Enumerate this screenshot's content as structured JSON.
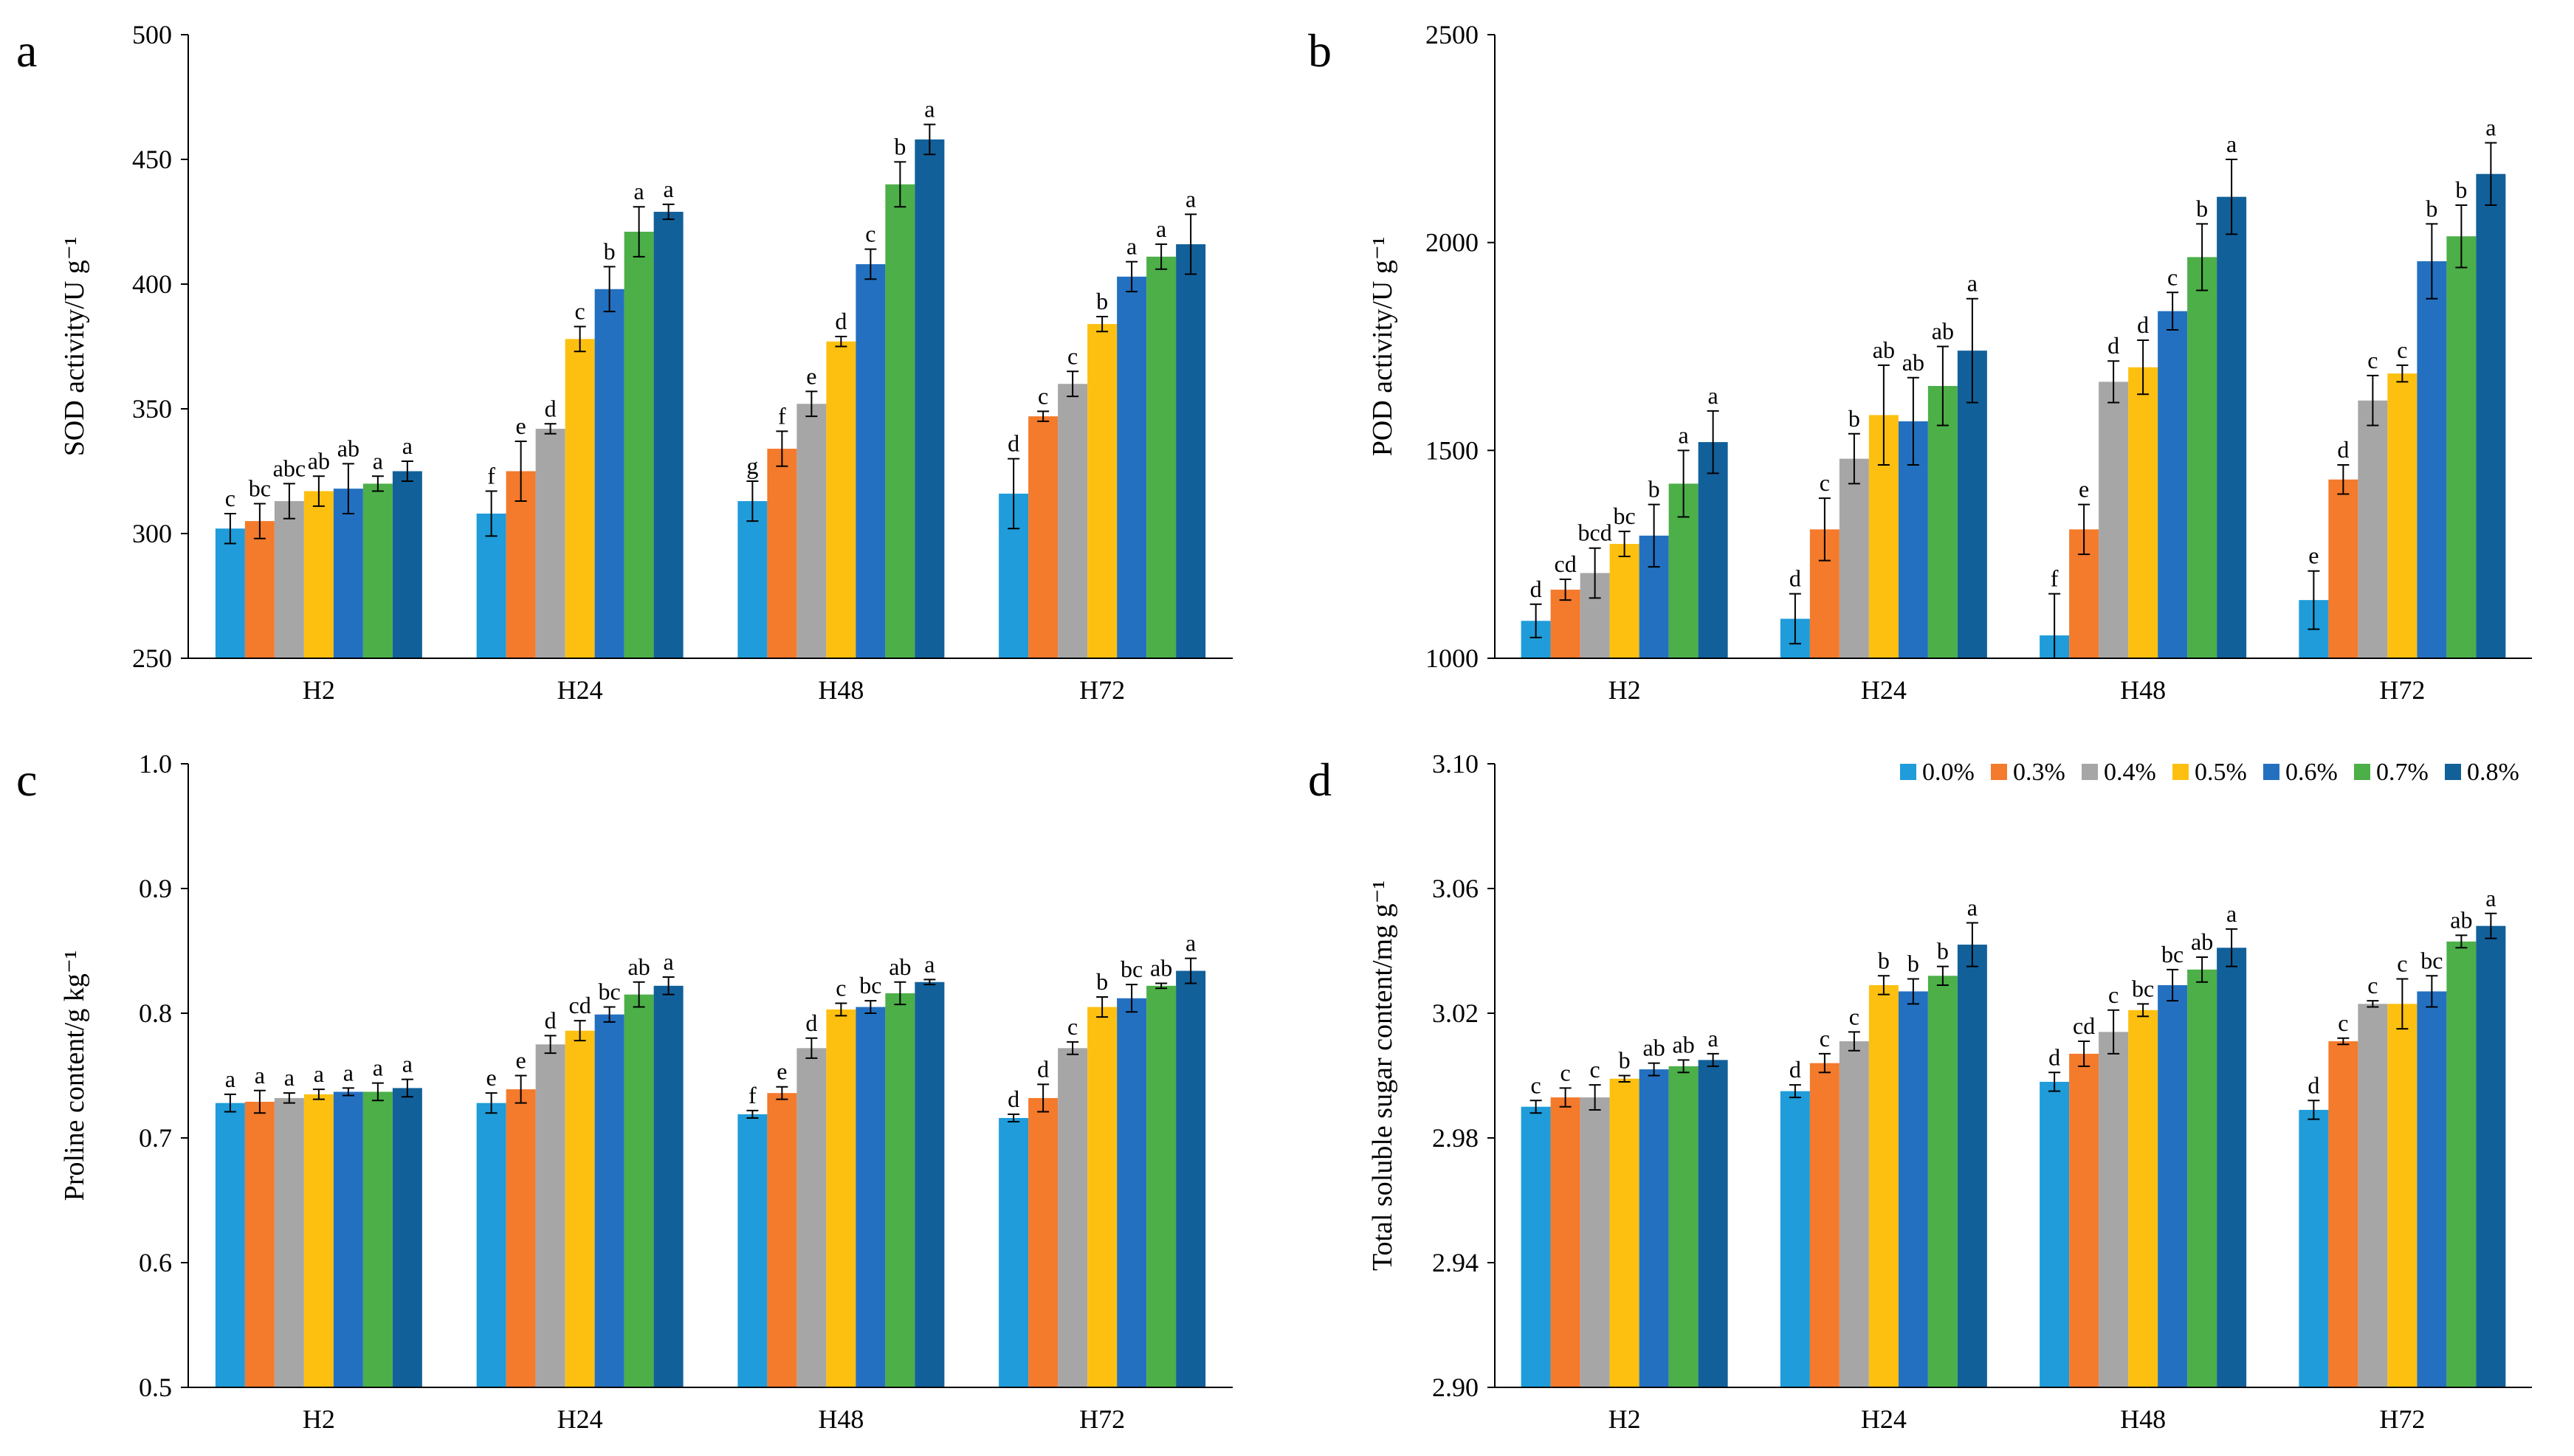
{
  "legend": {
    "labels": [
      "0.0%",
      "0.3%",
      "0.4%",
      "0.5%",
      "0.6%",
      "0.7%",
      "0.8%"
    ],
    "colors": [
      "#1f9cd9",
      "#f47a2c",
      "#a6a6a6",
      "#fdc010",
      "#2470c0",
      "#4caf48",
      "#12609a"
    ]
  },
  "chart_data": [
    {
      "panel": "a",
      "type": "bar",
      "ylabel": "SOD activity/U g⁻¹",
      "ylim": [
        250,
        500
      ],
      "yticks": [
        "250",
        "300",
        "350",
        "400",
        "450",
        "500"
      ],
      "categories": [
        "H2",
        "H24",
        "H48",
        "H72"
      ],
      "series": [
        {
          "name": "0.0%",
          "values": [
            302,
            308,
            313,
            316
          ],
          "errors": [
            6,
            9,
            8,
            14
          ],
          "letters": [
            "c",
            "f",
            "g",
            "d"
          ]
        },
        {
          "name": "0.3%",
          "values": [
            305,
            325,
            334,
            347
          ],
          "errors": [
            7,
            12,
            7,
            2
          ],
          "letters": [
            "bc",
            "e",
            "f",
            "c"
          ]
        },
        {
          "name": "0.4%",
          "values": [
            313,
            342,
            352,
            360
          ],
          "errors": [
            7,
            2,
            5,
            5
          ],
          "letters": [
            "abc",
            "d",
            "e",
            "c"
          ]
        },
        {
          "name": "0.5%",
          "values": [
            317,
            378,
            377,
            384
          ],
          "errors": [
            6,
            5,
            2,
            3
          ],
          "letters": [
            "ab",
            "c",
            "d",
            "b"
          ]
        },
        {
          "name": "0.6%",
          "values": [
            318,
            398,
            408,
            403
          ],
          "errors": [
            10,
            9,
            6,
            6
          ],
          "letters": [
            "ab",
            "b",
            "c",
            "a"
          ]
        },
        {
          "name": "0.7%",
          "values": [
            320,
            421,
            440,
            411
          ],
          "errors": [
            3,
            10,
            9,
            5
          ],
          "letters": [
            "a",
            "a",
            "b",
            "a"
          ]
        },
        {
          "name": "0.8%",
          "values": [
            325,
            429,
            458,
            416
          ],
          "errors": [
            4,
            3,
            6,
            12
          ],
          "letters": [
            "a",
            "a",
            "a",
            "a"
          ]
        }
      ]
    },
    {
      "panel": "b",
      "type": "bar",
      "ylabel": "POD activity/U g⁻¹",
      "ylim": [
        1000,
        2500
      ],
      "yticks": [
        "1000",
        "1500",
        "2000",
        "2500"
      ],
      "categories": [
        "H2",
        "H24",
        "H48",
        "H72"
      ],
      "series": [
        {
          "name": "0.0%",
          "values": [
            1090,
            1095,
            1055,
            1140
          ],
          "errors": [
            40,
            60,
            100,
            70
          ],
          "letters": [
            "d",
            "d",
            "f",
            "e"
          ]
        },
        {
          "name": "0.3%",
          "values": [
            1165,
            1310,
            1310,
            1430
          ],
          "errors": [
            25,
            75,
            60,
            35
          ],
          "letters": [
            "cd",
            "c",
            "e",
            "d"
          ]
        },
        {
          "name": "0.4%",
          "values": [
            1205,
            1480,
            1665,
            1620
          ],
          "errors": [
            60,
            60,
            50,
            60
          ],
          "letters": [
            "bcd",
            "b",
            "d",
            "c"
          ]
        },
        {
          "name": "0.5%",
          "values": [
            1275,
            1585,
            1700,
            1685
          ],
          "errors": [
            30,
            120,
            65,
            20
          ],
          "letters": [
            "bc",
            "ab",
            "d",
            "c"
          ]
        },
        {
          "name": "0.6%",
          "values": [
            1295,
            1570,
            1835,
            1955
          ],
          "errors": [
            75,
            105,
            45,
            90
          ],
          "letters": [
            "b",
            "ab",
            "c",
            "b"
          ]
        },
        {
          "name": "0.7%",
          "values": [
            1420,
            1655,
            1965,
            2015
          ],
          "errors": [
            80,
            95,
            80,
            75
          ],
          "letters": [
            "a",
            "ab",
            "b",
            "b"
          ]
        },
        {
          "name": "0.8%",
          "values": [
            1520,
            1740,
            2110,
            2165
          ],
          "errors": [
            75,
            125,
            90,
            75
          ],
          "letters": [
            "a",
            "a",
            "a",
            "a"
          ]
        }
      ]
    },
    {
      "panel": "c",
      "type": "bar",
      "ylabel": "Proline content/g kg⁻¹",
      "ylim": [
        0.5,
        1.0
      ],
      "yticks": [
        "0.5",
        "0.6",
        "0.7",
        "0.8",
        "0.9",
        "1.0"
      ],
      "categories": [
        "H2",
        "H24",
        "H48",
        "H72"
      ],
      "series": [
        {
          "name": "0.0%",
          "values": [
            0.728,
            0.728,
            0.719,
            0.716
          ],
          "errors": [
            0.007,
            0.008,
            0.003,
            0.003
          ],
          "letters": [
            "a",
            "e",
            "f",
            "d"
          ]
        },
        {
          "name": "0.3%",
          "values": [
            0.729,
            0.739,
            0.736,
            0.732
          ],
          "errors": [
            0.009,
            0.011,
            0.005,
            0.011
          ],
          "letters": [
            "a",
            "e",
            "e",
            "d"
          ]
        },
        {
          "name": "0.4%",
          "values": [
            0.732,
            0.775,
            0.772,
            0.772
          ],
          "errors": [
            0.004,
            0.007,
            0.008,
            0.005
          ],
          "letters": [
            "a",
            "d",
            "d",
            "c"
          ]
        },
        {
          "name": "0.5%",
          "values": [
            0.735,
            0.786,
            0.803,
            0.805
          ],
          "errors": [
            0.004,
            0.008,
            0.005,
            0.008
          ],
          "letters": [
            "a",
            "cd",
            "c",
            "b"
          ]
        },
        {
          "name": "0.6%",
          "values": [
            0.737,
            0.799,
            0.805,
            0.812
          ],
          "errors": [
            0.003,
            0.006,
            0.005,
            0.011
          ],
          "letters": [
            "a",
            "bc",
            "bc",
            "bc"
          ]
        },
        {
          "name": "0.7%",
          "values": [
            0.737,
            0.815,
            0.816,
            0.822
          ],
          "errors": [
            0.007,
            0.01,
            0.009,
            0.002
          ],
          "letters": [
            "a",
            "ab",
            "ab",
            "ab"
          ]
        },
        {
          "name": "0.8%",
          "values": [
            0.74,
            0.822,
            0.825,
            0.834
          ],
          "errors": [
            0.007,
            0.007,
            0.002,
            0.01
          ],
          "letters": [
            "a",
            "a",
            "a",
            "a"
          ]
        }
      ]
    },
    {
      "panel": "d",
      "type": "bar",
      "ylabel": "Total soluble sugar content/mg g⁻¹",
      "ylim": [
        2.9,
        3.1
      ],
      "yticks": [
        "2.90",
        "2.94",
        "2.98",
        "3.02",
        "3.06",
        "3.10"
      ],
      "categories": [
        "H2",
        "H24",
        "H48",
        "H72"
      ],
      "series": [
        {
          "name": "0.0%",
          "values": [
            2.99,
            2.995,
            2.998,
            2.989
          ],
          "errors": [
            0.002,
            0.002,
            0.003,
            0.003
          ],
          "letters": [
            "c",
            "d",
            "d",
            "d"
          ]
        },
        {
          "name": "0.3%",
          "values": [
            2.993,
            3.004,
            3.007,
            3.011
          ],
          "errors": [
            0.003,
            0.003,
            0.004,
            0.001
          ],
          "letters": [
            "c",
            "c",
            "cd",
            "c"
          ]
        },
        {
          "name": "0.4%",
          "values": [
            2.993,
            3.011,
            3.014,
            3.023
          ],
          "errors": [
            0.004,
            0.003,
            0.007,
            0.001
          ],
          "letters": [
            "c",
            "c",
            "c",
            "c"
          ]
        },
        {
          "name": "0.5%",
          "values": [
            2.999,
            3.029,
            3.021,
            3.023
          ],
          "errors": [
            0.001,
            0.003,
            0.002,
            0.008
          ],
          "letters": [
            "b",
            "b",
            "bc",
            "c"
          ]
        },
        {
          "name": "0.6%",
          "values": [
            3.002,
            3.027,
            3.029,
            3.027
          ],
          "errors": [
            0.002,
            0.004,
            0.005,
            0.005
          ],
          "letters": [
            "ab",
            "b",
            "bc",
            "bc"
          ]
        },
        {
          "name": "0.7%",
          "values": [
            3.003,
            3.032,
            3.034,
            3.043
          ],
          "errors": [
            0.002,
            0.003,
            0.004,
            0.002
          ],
          "letters": [
            "ab",
            "b",
            "ab",
            "ab"
          ]
        },
        {
          "name": "0.8%",
          "values": [
            3.005,
            3.042,
            3.041,
            3.048
          ],
          "errors": [
            0.002,
            0.007,
            0.006,
            0.004
          ],
          "letters": [
            "a",
            "a",
            "a",
            "a"
          ]
        }
      ]
    }
  ]
}
